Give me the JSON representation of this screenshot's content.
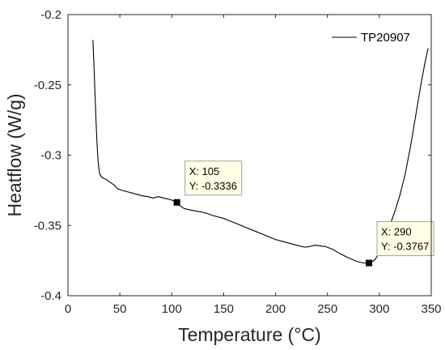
{
  "chart_data": {
    "type": "line",
    "xlabel": "Temperature (°C)",
    "ylabel": "Heatflow (W/g)",
    "xlim": [
      0,
      350
    ],
    "ylim": [
      -0.4,
      -0.2
    ],
    "x_ticks": [
      0,
      50,
      100,
      150,
      200,
      250,
      300,
      350
    ],
    "x_tick_labels": [
      "0",
      "50",
      "100",
      "150",
      "200",
      "250",
      "300",
      "350"
    ],
    "y_ticks": [
      -0.4,
      -0.35,
      -0.3,
      -0.25,
      -0.2
    ],
    "y_tick_labels": [
      "-0.4",
      "-0.35",
      "-0.3",
      "-0.25",
      "-0.2"
    ],
    "grid": false,
    "legend_position": "top-right",
    "series": [
      {
        "name": "TP20907",
        "color": "#000000",
        "points": [
          [
            24,
            -0.218
          ],
          [
            25,
            -0.235
          ],
          [
            26,
            -0.255
          ],
          [
            27,
            -0.275
          ],
          [
            28,
            -0.292
          ],
          [
            29,
            -0.304
          ],
          [
            30,
            -0.311
          ],
          [
            31,
            -0.314
          ],
          [
            33,
            -0.316
          ],
          [
            36,
            -0.317
          ],
          [
            40,
            -0.319
          ],
          [
            44,
            -0.321
          ],
          [
            48,
            -0.324
          ],
          [
            52,
            -0.325
          ],
          [
            57,
            -0.326
          ],
          [
            62,
            -0.327
          ],
          [
            67,
            -0.328
          ],
          [
            72,
            -0.329
          ],
          [
            77,
            -0.3295
          ],
          [
            82,
            -0.3305
          ],
          [
            87,
            -0.3295
          ],
          [
            92,
            -0.3305
          ],
          [
            98,
            -0.3315
          ],
          [
            102,
            -0.3325
          ],
          [
            105,
            -0.3336
          ],
          [
            108,
            -0.336
          ],
          [
            112,
            -0.338
          ],
          [
            118,
            -0.339
          ],
          [
            125,
            -0.34
          ],
          [
            132,
            -0.341
          ],
          [
            140,
            -0.343
          ],
          [
            150,
            -0.345
          ],
          [
            160,
            -0.348
          ],
          [
            170,
            -0.351
          ],
          [
            180,
            -0.354
          ],
          [
            190,
            -0.357
          ],
          [
            200,
            -0.36
          ],
          [
            210,
            -0.362
          ],
          [
            220,
            -0.364
          ],
          [
            228,
            -0.3655
          ],
          [
            233,
            -0.365
          ],
          [
            238,
            -0.364
          ],
          [
            243,
            -0.3645
          ],
          [
            248,
            -0.365
          ],
          [
            255,
            -0.367
          ],
          [
            262,
            -0.37
          ],
          [
            270,
            -0.373
          ],
          [
            278,
            -0.3755
          ],
          [
            285,
            -0.3768
          ],
          [
            290,
            -0.3767
          ],
          [
            295,
            -0.375
          ],
          [
            298,
            -0.372
          ],
          [
            302,
            -0.365
          ],
          [
            306,
            -0.358
          ],
          [
            310,
            -0.35
          ],
          [
            315,
            -0.34
          ],
          [
            320,
            -0.328
          ],
          [
            325,
            -0.313
          ],
          [
            330,
            -0.294
          ],
          [
            335,
            -0.272
          ],
          [
            340,
            -0.25
          ],
          [
            344,
            -0.234
          ],
          [
            347,
            -0.224
          ]
        ]
      }
    ],
    "annotations": [
      {
        "x": 105,
        "y": -0.3336,
        "x_text": "X: 105",
        "y_text": "Y: -0.3336"
      },
      {
        "x": 290,
        "y": -0.3767,
        "x_text": "X: 290",
        "y_text": "Y: -0.3767"
      }
    ]
  }
}
